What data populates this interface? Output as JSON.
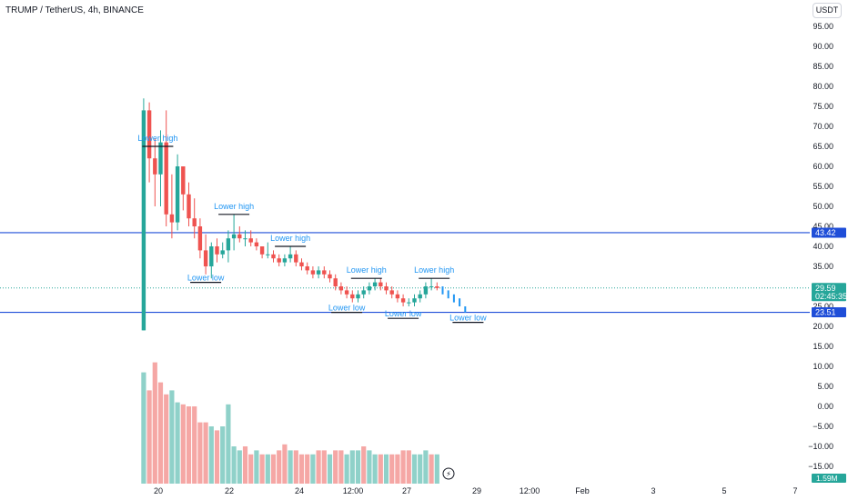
{
  "header": {
    "title": "TRUMP / TetherUS, 4h, BINANCE",
    "currency": "USDT"
  },
  "colors": {
    "up": "#26a69a",
    "down": "#ef5350",
    "up_volume": "#8fd1c9",
    "down_volume": "#f5a7a5",
    "level_line": "#1f4ed8",
    "annotation": "#2196f3"
  },
  "chart_data": {
    "type": "candlestick",
    "title": "TRUMP / TetherUS, 4h, BINANCE",
    "price_axis": {
      "ticks": [
        "95.00",
        "90.00",
        "85.00",
        "80.00",
        "75.00",
        "70.00",
        "65.00",
        "60.00",
        "55.00",
        "50.00",
        "45.00",
        "40.00",
        "35.00",
        "30.00",
        "25.00",
        "20.00",
        "15.00",
        "10.00",
        "5.00",
        "0.00",
        "−5.00",
        "−10.00",
        "−15.00"
      ],
      "range": [
        -18,
        98
      ]
    },
    "time_axis": {
      "ticks": [
        "20",
        "22",
        "24",
        "12:00",
        "27",
        "29",
        "12:00",
        "Feb",
        "3",
        "5",
        "7"
      ]
    },
    "price_labels": [
      {
        "text": "43.42",
        "value": 43.42,
        "color": "#1f4ed8"
      },
      {
        "text": "29.59",
        "value": 29.59,
        "color": "#26a69a",
        "countdown": "02:45:35"
      },
      {
        "text": "23.51",
        "value": 23.51,
        "color": "#1f4ed8"
      }
    ],
    "horizontal_levels": [
      43.42,
      23.51
    ],
    "current_price": 29.59,
    "volume_label": "1.59M",
    "candles": [
      [
        9,
        19,
        77,
        19,
        74
      ],
      [
        11,
        74,
        76,
        56,
        62
      ],
      [
        13,
        62,
        67,
        50,
        58
      ],
      [
        15,
        58,
        69,
        50,
        66
      ],
      [
        17,
        66,
        74,
        45,
        48
      ],
      [
        19,
        48,
        58,
        42,
        46
      ],
      [
        21,
        46,
        63,
        44,
        60
      ],
      [
        23,
        60,
        60,
        49,
        53
      ],
      [
        25,
        53,
        56,
        45,
        47
      ],
      [
        27,
        47,
        52,
        42,
        45
      ],
      [
        29,
        45,
        47,
        37,
        39
      ],
      [
        31,
        39,
        43,
        33,
        35
      ],
      [
        33,
        35,
        41,
        32,
        40
      ],
      [
        35,
        40,
        42,
        36,
        38
      ],
      [
        37,
        38,
        41,
        37,
        39
      ],
      [
        39,
        39,
        44,
        36,
        42
      ],
      [
        41,
        42,
        48,
        39,
        43
      ],
      [
        43,
        43,
        45,
        41,
        42
      ],
      [
        45,
        42,
        44,
        40,
        42
      ],
      [
        47,
        42,
        44,
        40,
        41
      ],
      [
        49,
        41,
        42,
        39,
        40
      ],
      [
        51,
        40,
        40,
        37,
        38
      ],
      [
        53,
        38,
        41,
        37,
        38
      ],
      [
        55,
        38,
        39,
        36,
        37
      ],
      [
        57,
        37,
        38,
        35,
        36
      ],
      [
        59,
        36,
        38,
        35,
        37
      ],
      [
        61,
        37,
        40,
        36,
        38
      ],
      [
        63,
        38,
        39,
        35,
        36
      ],
      [
        65,
        36,
        37,
        34,
        35
      ],
      [
        67,
        35,
        36,
        33,
        34
      ],
      [
        69,
        34,
        35,
        32,
        33
      ],
      [
        71,
        33,
        35,
        32,
        34
      ],
      [
        73,
        34,
        35,
        32,
        33
      ],
      [
        75,
        33,
        34,
        31,
        32
      ],
      [
        77,
        32,
        33,
        29,
        30
      ],
      [
        79,
        30,
        31,
        28,
        29
      ],
      [
        81,
        29,
        30,
        27,
        28
      ],
      [
        83,
        28,
        29,
        26,
        27
      ],
      [
        85,
        27,
        29,
        26,
        28
      ],
      [
        87,
        28,
        30,
        27,
        29
      ],
      [
        89,
        29,
        31,
        28,
        30
      ],
      [
        91,
        30,
        32,
        29,
        31
      ],
      [
        93,
        31,
        32,
        29,
        30
      ],
      [
        95,
        30,
        31,
        28,
        29
      ],
      [
        97,
        29,
        30,
        27,
        28
      ],
      [
        99,
        28,
        29,
        26,
        27
      ],
      [
        101,
        27,
        28,
        25,
        26
      ],
      [
        103,
        26,
        27,
        25,
        26
      ],
      [
        105,
        26,
        28,
        25,
        27
      ],
      [
        107,
        27,
        29,
        26,
        28
      ],
      [
        109,
        28,
        31,
        27,
        30
      ],
      [
        111,
        30,
        32,
        29,
        30
      ],
      [
        113,
        30,
        31,
        29,
        29.59
      ]
    ],
    "volumes": [
      [
        9,
        8.5,
        "up"
      ],
      [
        11,
        4,
        "down"
      ],
      [
        13,
        11,
        "down"
      ],
      [
        15,
        6,
        "down"
      ],
      [
        17,
        3,
        "down"
      ],
      [
        19,
        4,
        "up"
      ],
      [
        21,
        1,
        "up"
      ],
      [
        23,
        0.5,
        "down"
      ],
      [
        25,
        0,
        "down"
      ],
      [
        27,
        0,
        "down"
      ],
      [
        29,
        -4,
        "down"
      ],
      [
        31,
        -4,
        "down"
      ],
      [
        33,
        -5,
        "up"
      ],
      [
        35,
        -6,
        "down"
      ],
      [
        37,
        -5,
        "up"
      ],
      [
        39,
        0.5,
        "up"
      ],
      [
        41,
        -10,
        "up"
      ],
      [
        43,
        -11,
        "up"
      ],
      [
        45,
        -10,
        "down"
      ],
      [
        47,
        -12,
        "down"
      ],
      [
        49,
        -11,
        "up"
      ],
      [
        51,
        -12,
        "down"
      ],
      [
        53,
        -12,
        "up"
      ],
      [
        55,
        -12,
        "down"
      ],
      [
        57,
        -11,
        "down"
      ],
      [
        59,
        -9.5,
        "down"
      ],
      [
        61,
        -11,
        "up"
      ],
      [
        63,
        -11,
        "down"
      ],
      [
        65,
        -12,
        "down"
      ],
      [
        67,
        -12,
        "down"
      ],
      [
        69,
        -12,
        "up"
      ],
      [
        71,
        -11,
        "down"
      ],
      [
        73,
        -11,
        "down"
      ],
      [
        75,
        -12,
        "up"
      ],
      [
        77,
        -11,
        "down"
      ],
      [
        79,
        -11,
        "down"
      ],
      [
        81,
        -12,
        "up"
      ],
      [
        83,
        -11,
        "up"
      ],
      [
        85,
        -11,
        "up"
      ],
      [
        87,
        -10,
        "down"
      ],
      [
        89,
        -11,
        "up"
      ],
      [
        91,
        -12,
        "up"
      ],
      [
        93,
        -12,
        "down"
      ],
      [
        95,
        -12,
        "up"
      ],
      [
        97,
        -12,
        "down"
      ],
      [
        99,
        -12,
        "down"
      ],
      [
        101,
        -11,
        "down"
      ],
      [
        103,
        -11,
        "down"
      ],
      [
        105,
        -12,
        "up"
      ],
      [
        107,
        -12,
        "up"
      ],
      [
        109,
        -11,
        "up"
      ],
      [
        111,
        -12,
        "down"
      ],
      [
        113,
        -12,
        "up"
      ]
    ],
    "projection": [
      [
        115,
        30,
        28
      ],
      [
        117,
        29,
        27
      ],
      [
        119,
        28,
        26
      ],
      [
        121,
        27,
        25
      ],
      [
        123,
        25,
        23.5
      ]
    ],
    "annotations": [
      {
        "text": "Lower high",
        "x": 14,
        "y": 65,
        "kind": "high"
      },
      {
        "text": "Lower high",
        "x": 41,
        "y": 48,
        "kind": "high"
      },
      {
        "text": "Lower high",
        "x": 61,
        "y": 40,
        "kind": "high"
      },
      {
        "text": "Lower high",
        "x": 88,
        "y": 32,
        "kind": "high"
      },
      {
        "text": "Lower high",
        "x": 112,
        "y": 32,
        "kind": "high"
      },
      {
        "text": "Lower low",
        "x": 31,
        "y": 31,
        "kind": "low"
      },
      {
        "text": "Lower low",
        "x": 81,
        "y": 23.5,
        "kind": "low"
      },
      {
        "text": "Lower low",
        "x": 101,
        "y": 22,
        "kind": "low"
      },
      {
        "text": "Lower low",
        "x": 124,
        "y": 21,
        "kind": "low"
      }
    ]
  }
}
